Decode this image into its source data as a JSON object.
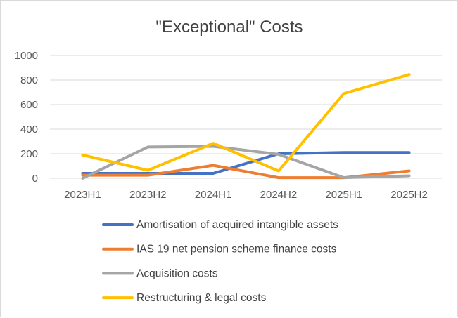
{
  "chart_data": {
    "type": "line",
    "title": "\"Exceptional\" Costs",
    "xlabel": "",
    "ylabel": "",
    "categories": [
      "2023H1",
      "2023H2",
      "2024H1",
      "2024H2",
      "2025H1",
      "2025H2"
    ],
    "ylim": [
      0,
      1000
    ],
    "yticks": [
      0,
      200,
      400,
      600,
      800,
      1000
    ],
    "grid": true,
    "legend_position": "bottom",
    "series": [
      {
        "name": "Amortisation of acquired intangible assets",
        "color": "#4472C4",
        "values": [
          40,
          40,
          40,
          200,
          210,
          210
        ]
      },
      {
        "name": "IAS 19 net pension scheme finance costs",
        "color": "#ED7D31",
        "values": [
          25,
          25,
          105,
          5,
          5,
          60
        ]
      },
      {
        "name": "Acquisition costs",
        "color": "#A5A5A5",
        "values": [
          0,
          255,
          260,
          195,
          5,
          20
        ]
      },
      {
        "name": "Restructuring & legal costs",
        "color": "#FFC000",
        "values": [
          190,
          65,
          285,
          60,
          690,
          845
        ]
      }
    ]
  }
}
